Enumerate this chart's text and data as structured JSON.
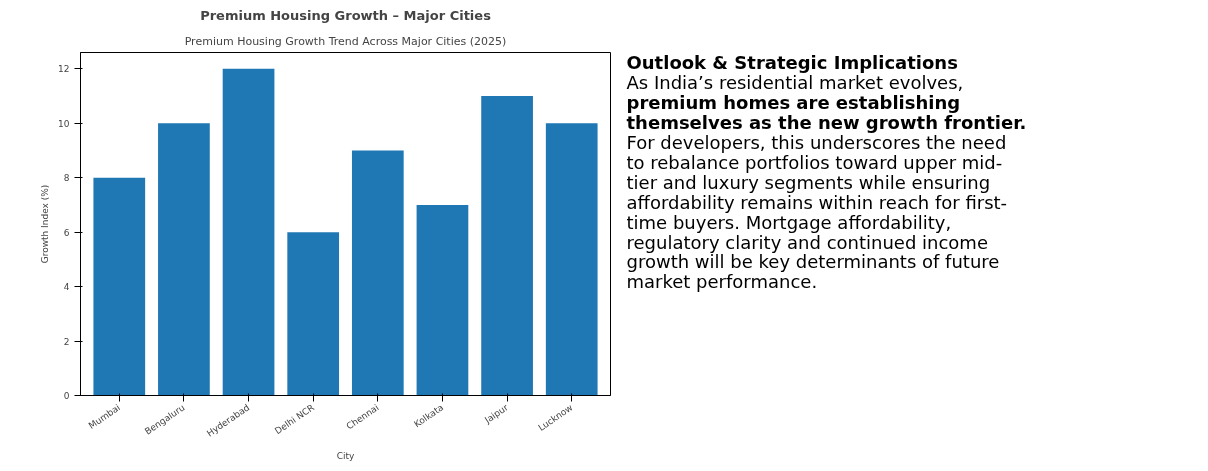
{
  "chart_data": [
    {
      "type": "bar",
      "title": "Premium Housing Growth – Major Cities",
      "subtitle": "Premium Housing Growth Trend Across Major Cities (2025)",
      "xlabel": "City",
      "ylabel": "Growth Index (%)",
      "categories": [
        "Mumbai",
        "Bengaluru",
        "Hyderabad",
        "Delhi NCR",
        "Chennai",
        "Kolkata",
        "Jaipur",
        "Lucknow"
      ],
      "values": [
        8,
        10,
        12,
        6,
        9,
        7,
        11,
        10
      ],
      "color": "#1f77b4",
      "ylim": [
        0,
        12.6
      ],
      "yticks": [
        0,
        2,
        4,
        6,
        8,
        10,
        12
      ],
      "grid": false
    },
    {
      "type": "other",
      "title": "Outlook & Strategic Implications",
      "annotations": [
        "As India’s residential market evolves,",
        "premium homes are establishing",
        "themselves as the new growth frontier.",
        "For developers, this underscores the need",
        "to rebalance portfolios toward upper mid-",
        "tier and luxury segments while ensuring",
        "affordability remains within reach for first-",
        "time buyers. Mortgage affordability,",
        "regulatory clarity and continued income",
        "growth will be key determinants of future",
        "market performance."
      ]
    }
  ]
}
